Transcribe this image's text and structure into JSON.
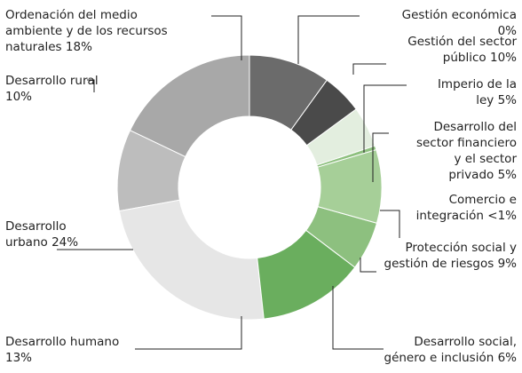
{
  "chart_data": {
    "type": "donut",
    "categories": [
      "Gestión económica",
      "Gestión del sector público",
      "Imperio de la ley",
      "Desarrollo del sector financiero y el sector privado",
      "Comercio e integración",
      "Protección social y gestión de riesgos",
      "Desarrollo social, género e inclusión",
      "Desarrollo humano",
      "Desarrollo urbano",
      "Desarrollo rural",
      "Ordenación del medio ambiente y de los recursos naturales"
    ],
    "values": [
      0,
      10,
      5,
      5,
      0.5,
      9,
      6,
      13,
      24,
      10,
      18
    ],
    "value_labels": [
      "0%",
      "10%",
      "5%",
      "5%",
      "<1%",
      "9%",
      "6%",
      "13%",
      "24%",
      "10%",
      "18%"
    ],
    "colors": [
      "#333333",
      "#6b6b6b",
      "#4a4a4a",
      "#e3eedf",
      "#8ec07f",
      "#a6cf98",
      "#8dc07f",
      "#6aae5e",
      "#e6e6e6",
      "#bdbdbd",
      "#a8a8a8"
    ]
  }
}
